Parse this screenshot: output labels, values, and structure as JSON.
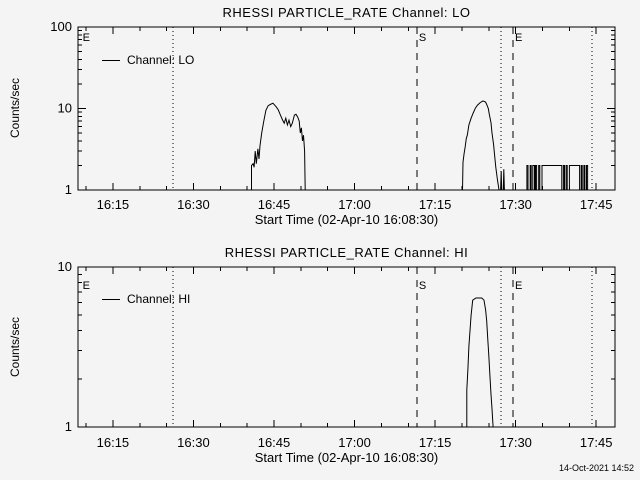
{
  "colors": {
    "background": "#f4f4f4",
    "line": "#000000"
  },
  "footer": {
    "timestamp": "14-Oct-2021 14:52"
  },
  "chart_data": [
    {
      "type": "line",
      "title": "RHESSI PARTICLE_RATE Channel: LO",
      "ylabel": "Counts/sec",
      "xlabel": "Start Time (02-Apr-10 16:08:30)",
      "legend": {
        "label": "Channel: LO"
      },
      "x_axis": {
        "unit": "minutes since 16:08:30",
        "range": [
          0,
          100
        ],
        "ticks": [
          {
            "label": "16:15",
            "t": 6.5
          },
          {
            "label": "16:30",
            "t": 21.5
          },
          {
            "label": "16:45",
            "t": 36.5
          },
          {
            "label": "17:00",
            "t": 51.5
          },
          {
            "label": "17:15",
            "t": 66.5
          },
          {
            "label": "17:30",
            "t": 81.5
          },
          {
            "label": "17:45",
            "t": 96.5
          }
        ],
        "minor_start": 1.5,
        "minor_step": 5
      },
      "y_axis": {
        "scale": "log",
        "range": [
          1,
          100
        ],
        "ticks": [
          {
            "label": "1",
            "v": 1
          },
          {
            "label": "10",
            "v": 10
          },
          {
            "label": "100",
            "v": 100
          }
        ]
      },
      "grid": false,
      "markers": [
        {
          "label": "E",
          "style": "none",
          "t": 0.5
        },
        {
          "label": "",
          "style": "dotted",
          "t": 17.7
        },
        {
          "label": "S",
          "style": "dashed",
          "t": 63.1
        },
        {
          "label": "",
          "style": "dotted",
          "t": 78.8
        },
        {
          "label": "E",
          "style": "dashed",
          "t": 81.0
        },
        {
          "label": "",
          "style": "dotted",
          "t": 95.7
        }
      ],
      "series": [
        {
          "name": "Channel: LO",
          "points": [
            [
              32.3,
              1
            ],
            [
              32.3,
              2.0
            ],
            [
              32.6,
              2.1
            ],
            [
              32.8,
              1.9
            ],
            [
              33.0,
              3.0
            ],
            [
              33.2,
              2.1
            ],
            [
              33.5,
              3.2
            ],
            [
              33.7,
              2.4
            ],
            [
              33.9,
              3.5
            ],
            [
              34.2,
              5.0
            ],
            [
              34.6,
              7.0
            ],
            [
              35.0,
              9.5
            ],
            [
              35.4,
              10.8
            ],
            [
              35.8,
              11.2
            ],
            [
              36.3,
              11.6
            ],
            [
              36.9,
              10.5
            ],
            [
              37.3,
              9.6
            ],
            [
              37.7,
              8.3
            ],
            [
              38.1,
              7.2
            ],
            [
              38.4,
              6.6
            ],
            [
              38.7,
              7.6
            ],
            [
              39.0,
              6.3
            ],
            [
              39.3,
              7.2
            ],
            [
              39.6,
              6.0
            ],
            [
              39.9,
              6.6
            ],
            [
              40.3,
              8.3
            ],
            [
              40.6,
              8.5
            ],
            [
              40.9,
              7.9
            ],
            [
              41.2,
              7.0
            ],
            [
              41.4,
              5.0
            ],
            [
              41.6,
              5.8
            ],
            [
              41.8,
              4.0
            ],
            [
              42.0,
              4.7
            ],
            [
              42.2,
              3.0
            ],
            [
              42.3,
              1
            ],
            [
              71.6,
              1
            ],
            [
              71.7,
              2.2
            ],
            [
              71.9,
              2.8
            ],
            [
              72.1,
              3.4
            ],
            [
              72.3,
              4.3
            ],
            [
              72.5,
              4.7
            ],
            [
              72.8,
              6.3
            ],
            [
              73.2,
              7.6
            ],
            [
              73.6,
              8.8
            ],
            [
              74.0,
              10.1
            ],
            [
              74.4,
              11.0
            ],
            [
              74.9,
              11.8
            ],
            [
              75.4,
              12.4
            ],
            [
              75.9,
              12.0
            ],
            [
              76.1,
              11.2
            ],
            [
              76.4,
              10.0
            ],
            [
              76.6,
              8.5
            ],
            [
              76.9,
              6.7
            ],
            [
              77.1,
              5.0
            ],
            [
              77.4,
              3.6
            ],
            [
              77.6,
              2.6
            ],
            [
              77.8,
              1.9
            ],
            [
              78.1,
              1.35
            ],
            [
              78.4,
              1
            ],
            [
              78.7,
              1
            ],
            [
              78.8,
              1.7
            ],
            [
              78.9,
              1
            ],
            [
              79.2,
              1
            ],
            [
              79.3,
              1.8
            ],
            [
              79.4,
              1
            ],
            [
              83.6,
              1
            ],
            [
              83.6,
              2
            ],
            [
              83.8,
              2
            ],
            [
              83.8,
              1
            ],
            [
              84.2,
              1
            ],
            [
              84.2,
              2
            ],
            [
              84.4,
              2
            ],
            [
              84.4,
              1
            ],
            [
              84.7,
              1
            ],
            [
              84.7,
              2
            ],
            [
              85.0,
              2
            ],
            [
              85.0,
              1
            ],
            [
              85.2,
              1
            ],
            [
              85.2,
              2
            ],
            [
              85.4,
              2
            ],
            [
              85.4,
              1
            ],
            [
              85.8,
              1
            ],
            [
              85.8,
              2
            ],
            [
              86.0,
              2
            ],
            [
              86.0,
              1
            ],
            [
              86.4,
              1
            ],
            [
              86.4,
              2
            ],
            [
              90.1,
              2
            ],
            [
              90.1,
              1
            ],
            [
              90.4,
              1
            ],
            [
              90.4,
              2
            ],
            [
              90.6,
              2
            ],
            [
              90.6,
              1
            ],
            [
              90.9,
              1
            ],
            [
              90.9,
              2
            ],
            [
              91.1,
              2
            ],
            [
              91.1,
              1
            ],
            [
              91.5,
              1
            ],
            [
              91.5,
              2
            ],
            [
              93.4,
              2
            ],
            [
              93.4,
              1
            ],
            [
              93.7,
              1
            ],
            [
              93.7,
              2
            ],
            [
              93.9,
              2
            ],
            [
              93.9,
              1
            ],
            [
              94.2,
              1
            ],
            [
              94.2,
              2
            ],
            [
              94.4,
              2
            ],
            [
              94.4,
              1
            ],
            [
              94.7,
              1
            ],
            [
              94.7,
              2
            ],
            [
              94.9,
              2
            ],
            [
              94.9,
              1
            ],
            [
              95.3,
              1
            ]
          ]
        }
      ]
    },
    {
      "type": "line",
      "title": "RHESSI PARTICLE_RATE Channel: HI",
      "ylabel": "Counts/sec",
      "xlabel": "Start Time (02-Apr-10 16:08:30)",
      "legend": {
        "label": "Channel: HI"
      },
      "x_axis": {
        "unit": "minutes since 16:08:30",
        "range": [
          0,
          100
        ],
        "ticks": [
          {
            "label": "16:15",
            "t": 6.5
          },
          {
            "label": "16:30",
            "t": 21.5
          },
          {
            "label": "16:45",
            "t": 36.5
          },
          {
            "label": "17:00",
            "t": 51.5
          },
          {
            "label": "17:15",
            "t": 66.5
          },
          {
            "label": "17:30",
            "t": 81.5
          },
          {
            "label": "17:45",
            "t": 96.5
          }
        ],
        "minor_start": 1.5,
        "minor_step": 5
      },
      "y_axis": {
        "scale": "log",
        "range": [
          1,
          10
        ],
        "ticks": [
          {
            "label": "1",
            "v": 1
          },
          {
            "label": "10",
            "v": 10
          }
        ]
      },
      "grid": false,
      "markers": [
        {
          "label": "E",
          "style": "none",
          "t": 0.5
        },
        {
          "label": "",
          "style": "dotted",
          "t": 17.7
        },
        {
          "label": "S",
          "style": "dashed",
          "t": 63.1
        },
        {
          "label": "",
          "style": "dotted",
          "t": 78.8
        },
        {
          "label": "E",
          "style": "dashed",
          "t": 81.0
        },
        {
          "label": "",
          "style": "dotted",
          "t": 95.7
        }
      ],
      "series": [
        {
          "name": "Channel: HI",
          "points": [
            [
              72.4,
              1
            ],
            [
              72.4,
              1.7
            ],
            [
              72.6,
              2.3
            ],
            [
              72.8,
              3.2
            ],
            [
              73.0,
              4.0
            ],
            [
              73.2,
              5.0
            ],
            [
              73.5,
              6.2
            ],
            [
              74.1,
              6.4
            ],
            [
              75.2,
              6.4
            ],
            [
              75.6,
              6.2
            ],
            [
              75.9,
              5.4
            ],
            [
              76.1,
              4.6
            ],
            [
              76.3,
              3.6
            ],
            [
              76.5,
              2.8
            ],
            [
              76.7,
              2.1
            ],
            [
              76.9,
              1.6
            ],
            [
              77.1,
              1.3
            ],
            [
              77.3,
              1
            ]
          ]
        }
      ]
    }
  ]
}
